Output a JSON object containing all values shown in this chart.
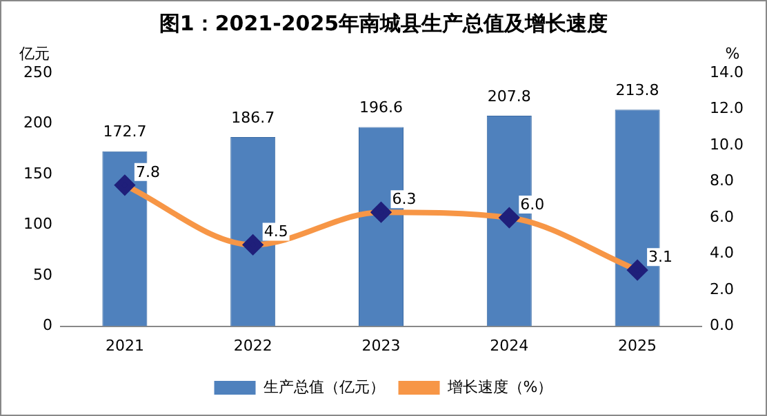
{
  "chart_data": {
    "type": "bar",
    "title": "图1：2021-2025年南城县生产总值及增长速度",
    "ylabel": "亿元",
    "y2label": "%",
    "categories": [
      "2021",
      "2022",
      "2023",
      "2024",
      "2025"
    ],
    "series": [
      {
        "name": "生产总值（亿元）",
        "color": "#4f81bd",
        "values": [
          172.7,
          186.7,
          196.6,
          207.8,
          213.8
        ],
        "value_labels": [
          "172.7",
          "186.7",
          "196.6",
          "207.8",
          "213.8"
        ]
      },
      {
        "name": "增长速度（%）",
        "type": "line",
        "axis": "y2",
        "color": "#f79646",
        "values": [
          7.8,
          4.5,
          6.3,
          6.0,
          3.1
        ],
        "value_labels": [
          "7.8",
          "4.5",
          "6.3",
          "6.0",
          "3.1"
        ],
        "marker": "diamond"
      }
    ],
    "ylim": [
      0,
      250
    ],
    "yticks": [
      0,
      50,
      100,
      150,
      200,
      250
    ],
    "y2lim": [
      0,
      14
    ],
    "y2ticks": [
      {
        "value": 0,
        "label": "0.0"
      },
      {
        "value": 2,
        "label": "2.0"
      },
      {
        "value": 4,
        "label": "4.0"
      },
      {
        "value": 6,
        "label": "6.0"
      },
      {
        "value": 8,
        "label": "8.0"
      },
      {
        "value": 10,
        "label": "10.0"
      },
      {
        "value": 12,
        "label": "12.0"
      },
      {
        "value": 14,
        "label": "14.0"
      }
    ],
    "grid": false,
    "legend": "bottom"
  }
}
